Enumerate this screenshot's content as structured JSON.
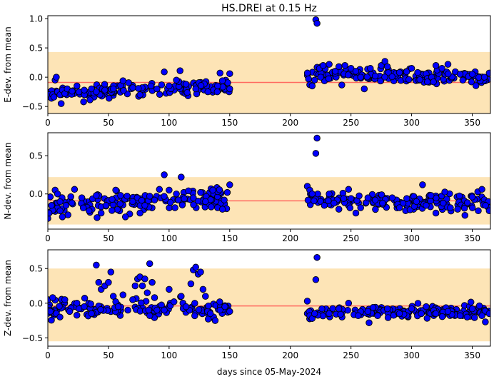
{
  "title": "HS.DREI at 0.15 Hz",
  "xlabel": "days since 05-May-2024",
  "colors": {
    "band": "#fde4b6",
    "mean_line": "#ff6a60",
    "marker_fill": "#0000ff",
    "marker_edge": "#000000"
  },
  "chart_data": [
    {
      "type": "scatter",
      "ylabel": "E-dev. from mean",
      "xlim": [
        0,
        365
      ],
      "ylim": [
        -0.62,
        1.05
      ],
      "xticks": [
        0,
        50,
        100,
        150,
        200,
        250,
        300,
        350
      ],
      "yticks": [
        -0.5,
        0.0,
        0.5,
        1.0
      ],
      "ytick_labels": [
        "−0.5",
        "0.0",
        "0.5",
        "1.0"
      ],
      "band": [
        -0.62,
        0.43
      ],
      "mean_line": -0.09,
      "segments": [
        {
          "x_start": 0,
          "x_end": 150,
          "count": 140,
          "base": -0.28,
          "trend": 0.12,
          "spread": 0.06
        },
        {
          "x_start": 214,
          "x_end": 364,
          "count": 150,
          "base": 0.05,
          "trend": -0.05,
          "spread": 0.06
        }
      ],
      "points": [
        [
          0,
          -0.33
        ],
        [
          1,
          -0.3
        ],
        [
          3,
          -0.36
        ],
        [
          4,
          -0.3
        ],
        [
          5,
          -0.34
        ],
        [
          6,
          -0.05
        ],
        [
          7,
          0.0
        ],
        [
          8,
          -0.25
        ],
        [
          10,
          -0.3
        ],
        [
          11,
          -0.45
        ],
        [
          12,
          -0.22
        ],
        [
          14,
          -0.28
        ],
        [
          16,
          -0.2
        ],
        [
          20,
          -0.24
        ],
        [
          24,
          -0.15
        ],
        [
          30,
          -0.22
        ],
        [
          36,
          -0.2
        ],
        [
          40,
          -0.25
        ],
        [
          47,
          -0.22
        ],
        [
          54,
          -0.2
        ],
        [
          60,
          -0.14
        ],
        [
          62,
          -0.06
        ],
        [
          70,
          -0.18
        ],
        [
          76,
          -0.3
        ],
        [
          85,
          -0.15
        ],
        [
          90,
          -0.2
        ],
        [
          96,
          0.09
        ],
        [
          100,
          -0.15
        ],
        [
          106,
          -0.05
        ],
        [
          109,
          0.11
        ],
        [
          114,
          -0.12
        ],
        [
          122,
          -0.2
        ],
        [
          132,
          -0.25
        ],
        [
          140,
          -0.15
        ],
        [
          142,
          0.07
        ],
        [
          144,
          -0.06
        ],
        [
          150,
          0.06
        ],
        [
          150,
          -0.2
        ],
        [
          215,
          -0.03
        ],
        [
          216,
          -0.13
        ],
        [
          218,
          -0.15
        ],
        [
          220,
          -0.05
        ],
        [
          221,
          0.98
        ],
        [
          222,
          0.92
        ],
        [
          224,
          0.15
        ],
        [
          225,
          0.0
        ],
        [
          227,
          0.2
        ],
        [
          232,
          0.22
        ],
        [
          237,
          0.1
        ],
        [
          240,
          0.18
        ],
        [
          245,
          0.2
        ],
        [
          250,
          0.15
        ],
        [
          254,
          0.1
        ],
        [
          258,
          0.0
        ],
        [
          261,
          -0.2
        ],
        [
          266,
          0.15
        ],
        [
          270,
          0.02
        ],
        [
          275,
          0.2
        ],
        [
          278,
          0.27
        ],
        [
          280,
          0.18
        ],
        [
          290,
          0.08
        ],
        [
          300,
          0.15
        ],
        [
          305,
          0.08
        ],
        [
          313,
          -0.08
        ],
        [
          318,
          -0.08
        ],
        [
          320,
          0.2
        ],
        [
          325,
          0.15
        ],
        [
          330,
          0.22
        ],
        [
          340,
          0.05
        ],
        [
          350,
          0.05
        ],
        [
          360,
          0.0
        ],
        [
          364,
          0.07
        ]
      ]
    },
    {
      "type": "scatter",
      "ylabel": "N-dev. from mean",
      "xlim": [
        0,
        365
      ],
      "ylim": [
        -0.46,
        0.8
      ],
      "xticks": [
        0,
        50,
        100,
        150,
        200,
        250,
        300,
        350
      ],
      "yticks": [
        0.0,
        0.5
      ],
      "ytick_labels": [
        "0.0",
        "0.5"
      ],
      "band": [
        -0.4,
        0.22
      ],
      "mean_line": -0.09,
      "segments": [
        {
          "x_start": 0,
          "x_end": 150,
          "count": 140,
          "base": -0.16,
          "trend": 0.1,
          "spread": 0.07
        },
        {
          "x_start": 214,
          "x_end": 364,
          "count": 150,
          "base": -0.08,
          "trend": -0.04,
          "spread": 0.06
        }
      ],
      "points": [
        [
          0,
          -0.32
        ],
        [
          1,
          -0.25
        ],
        [
          3,
          -0.15
        ],
        [
          6,
          0.05
        ],
        [
          8,
          0.0
        ],
        [
          12,
          -0.3
        ],
        [
          15,
          -0.15
        ],
        [
          22,
          0.06
        ],
        [
          28,
          -0.05
        ],
        [
          34,
          -0.22
        ],
        [
          40,
          -0.02
        ],
        [
          44,
          -0.25
        ],
        [
          48,
          -0.15
        ],
        [
          56,
          0.05
        ],
        [
          60,
          -0.02
        ],
        [
          64,
          -0.3
        ],
        [
          70,
          -0.1
        ],
        [
          76,
          -0.25
        ],
        [
          80,
          -0.15
        ],
        [
          84,
          -0.03
        ],
        [
          88,
          -0.08
        ],
        [
          92,
          0.06
        ],
        [
          96,
          0.25
        ],
        [
          100,
          0.05
        ],
        [
          106,
          0.0
        ],
        [
          110,
          0.22
        ],
        [
          116,
          0.04
        ],
        [
          120,
          -0.05
        ],
        [
          126,
          0.02
        ],
        [
          130,
          -0.1
        ],
        [
          136,
          0.05
        ],
        [
          140,
          -0.18
        ],
        [
          144,
          -0.2
        ],
        [
          148,
          0.02
        ],
        [
          150,
          0.12
        ],
        [
          214,
          0.1
        ],
        [
          216,
          0.05
        ],
        [
          218,
          0.0
        ],
        [
          221,
          0.53
        ],
        [
          222,
          0.73
        ],
        [
          225,
          -0.1
        ],
        [
          228,
          -0.15
        ],
        [
          232,
          0.0
        ],
        [
          236,
          -0.12
        ],
        [
          240,
          -0.2
        ],
        [
          244,
          -0.06
        ],
        [
          248,
          0.06
        ],
        [
          250,
          -0.06
        ],
        [
          254,
          -0.25
        ],
        [
          258,
          -0.18
        ],
        [
          264,
          -0.05
        ],
        [
          270,
          -0.08
        ],
        [
          276,
          -0.12
        ],
        [
          284,
          -0.05
        ],
        [
          290,
          -0.18
        ],
        [
          296,
          -0.06
        ],
        [
          304,
          -0.1
        ],
        [
          309,
          0.12
        ],
        [
          312,
          -0.15
        ],
        [
          316,
          -0.02
        ],
        [
          320,
          -0.25
        ],
        [
          326,
          -0.12
        ],
        [
          332,
          -0.18
        ],
        [
          338,
          -0.2
        ],
        [
          344,
          -0.28
        ],
        [
          350,
          -0.04
        ],
        [
          355,
          -0.22
        ],
        [
          358,
          0.06
        ],
        [
          361,
          -0.15
        ],
        [
          364,
          -0.22
        ]
      ]
    },
    {
      "type": "scatter",
      "ylabel": "Z-dev. from mean",
      "xlabel": "days since 05-May-2024",
      "xlim": [
        0,
        365
      ],
      "ylim": [
        -0.62,
        0.77
      ],
      "xticks": [
        0,
        50,
        100,
        150,
        200,
        250,
        300,
        350
      ],
      "yticks": [
        -0.5,
        0.0,
        0.5
      ],
      "ytick_labels": [
        "−0.5",
        "0.0",
        "0.5"
      ],
      "band": [
        -0.55,
        0.5
      ],
      "mean_line": -0.04,
      "segments": [
        {
          "x_start": 0,
          "x_end": 150,
          "count": 130,
          "base": -0.08,
          "trend": 0.0,
          "spread": 0.06
        },
        {
          "x_start": 214,
          "x_end": 364,
          "count": 150,
          "base": -0.14,
          "trend": 0.02,
          "spread": 0.05
        }
      ],
      "points": [
        [
          0,
          0.05
        ],
        [
          2,
          -0.12
        ],
        [
          4,
          0.08
        ],
        [
          7,
          -0.15
        ],
        [
          10,
          -0.2
        ],
        [
          14,
          0.05
        ],
        [
          18,
          -0.12
        ],
        [
          24,
          0.0
        ],
        [
          30,
          -0.05
        ],
        [
          36,
          -0.15
        ],
        [
          40,
          0.55
        ],
        [
          42,
          0.3
        ],
        [
          44,
          0.2
        ],
        [
          47,
          0.25
        ],
        [
          50,
          0.3
        ],
        [
          52,
          0.45
        ],
        [
          54,
          0.1
        ],
        [
          56,
          0.02
        ],
        [
          58,
          -0.05
        ],
        [
          62,
          0.12
        ],
        [
          66,
          -0.1
        ],
        [
          70,
          0.05
        ],
        [
          72,
          0.25
        ],
        [
          74,
          0.35
        ],
        [
          76,
          0.38
        ],
        [
          78,
          0.25
        ],
        [
          80,
          0.35
        ],
        [
          82,
          0.15
        ],
        [
          84,
          0.57
        ],
        [
          86,
          0.3
        ],
        [
          88,
          0.08
        ],
        [
          90,
          -0.1
        ],
        [
          96,
          -0.1
        ],
        [
          100,
          0.2
        ],
        [
          104,
          0.02
        ],
        [
          110,
          0.1
        ],
        [
          114,
          -0.05
        ],
        [
          118,
          0.28
        ],
        [
          120,
          0.48
        ],
        [
          122,
          0.52
        ],
        [
          124,
          0.42
        ],
        [
          126,
          0.45
        ],
        [
          128,
          0.2
        ],
        [
          130,
          0.1
        ],
        [
          134,
          -0.15
        ],
        [
          138,
          -0.25
        ],
        [
          142,
          -0.1
        ],
        [
          146,
          -0.05
        ],
        [
          150,
          -0.12
        ],
        [
          214,
          0.03
        ],
        [
          216,
          -0.18
        ],
        [
          218,
          -0.22
        ],
        [
          220,
          -0.15
        ],
        [
          221,
          0.34
        ],
        [
          222,
          0.66
        ],
        [
          226,
          -0.08
        ],
        [
          232,
          -0.15
        ],
        [
          240,
          -0.08
        ],
        [
          248,
          0.0
        ],
        [
          256,
          -0.18
        ],
        [
          264,
          -0.12
        ],
        [
          272,
          -0.18
        ],
        [
          280,
          -0.08
        ],
        [
          290,
          -0.15
        ],
        [
          300,
          -0.08
        ],
        [
          308,
          -0.15
        ],
        [
          312,
          -0.05
        ],
        [
          320,
          -0.15
        ],
        [
          330,
          -0.12
        ],
        [
          340,
          -0.18
        ],
        [
          350,
          -0.08
        ],
        [
          358,
          -0.18
        ],
        [
          364,
          -0.15
        ]
      ]
    }
  ]
}
